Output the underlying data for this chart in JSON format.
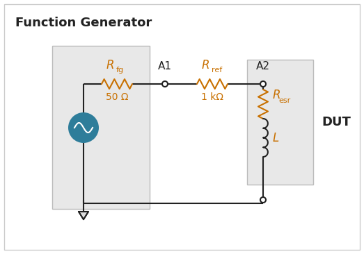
{
  "title": "Function Generator",
  "bg_color": "#ffffff",
  "fg_box_color": "#e8e8e8",
  "dut_box_color": "#e8e8e8",
  "line_color": "#222222",
  "teal_color": "#2e7d9a",
  "orange_color": "#c87000",
  "dark_color": "#222222",
  "border_color": "#bbbbbb",
  "resistor_color": "#c87000",
  "inductor_color": "#222222",
  "label_rfg": "R",
  "label_rfg_sub": "fg",
  "label_rref": "R",
  "label_rref_sub": "ref",
  "label_resr": "R",
  "label_resr_sub": "esr",
  "label_L": "L",
  "label_A1": "A1",
  "label_A2": "A2",
  "label_50": "50 Ω",
  "label_1k": "1 kΩ",
  "label_DUT": "DUT"
}
